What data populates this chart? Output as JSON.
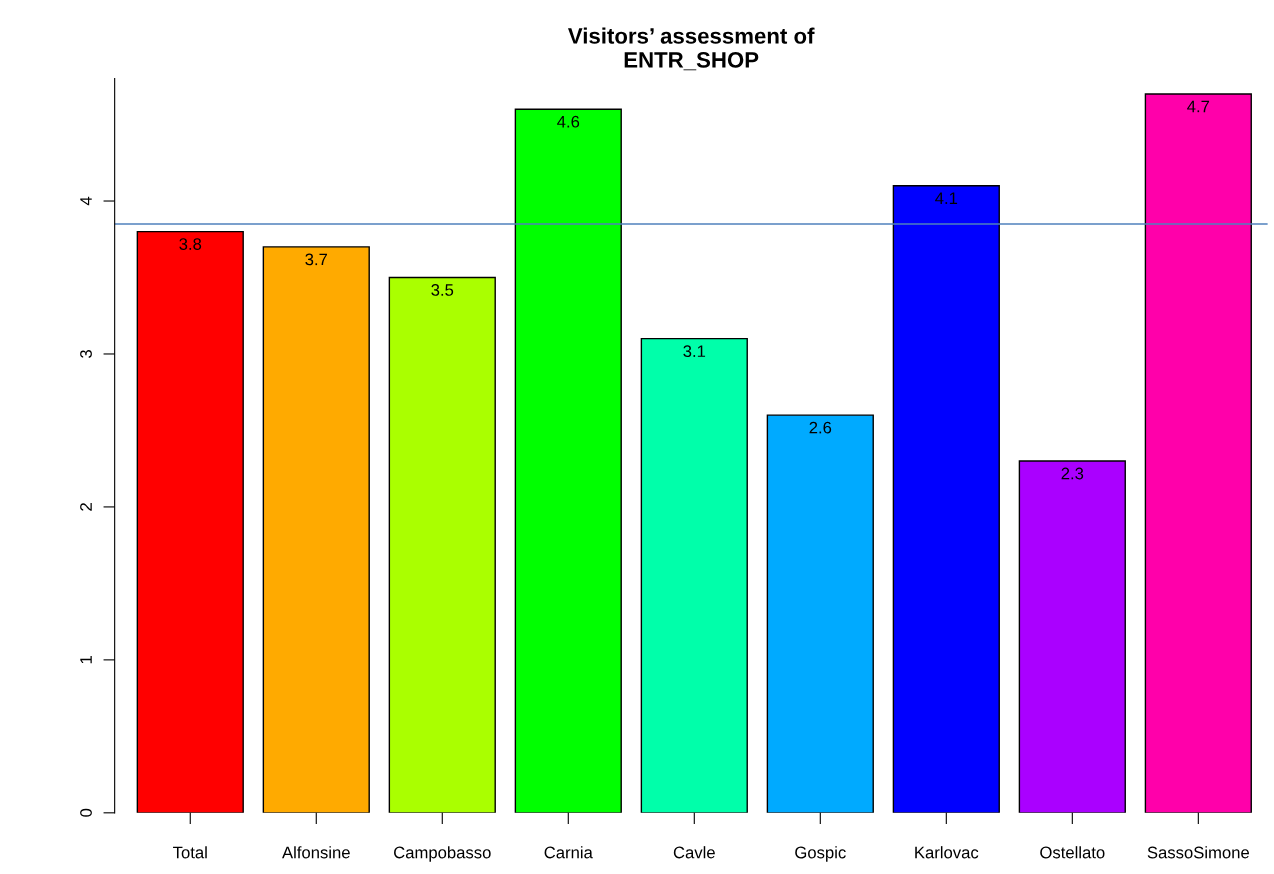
{
  "chart_data": {
    "type": "bar",
    "title": "Visitors’ assessment of\nENTR_SHOP",
    "categories": [
      "Total",
      "Alfonsine",
      "Campobasso",
      "Carnia",
      "Cavle",
      "Gospic",
      "Karlovac",
      "Ostellato",
      "SassoSimone"
    ],
    "values": [
      3.8,
      3.7,
      3.5,
      4.6,
      3.1,
      2.6,
      4.1,
      2.3,
      4.7
    ],
    "colors": [
      "#ff0000",
      "#ffaa00",
      "#aaff00",
      "#00ff00",
      "#00ffaa",
      "#00aaff",
      "#0000ff",
      "#aa00ff",
      "#ff00aa"
    ],
    "data_labels": true,
    "ylim": [
      0,
      4.8
    ],
    "yticks": [
      0,
      1,
      2,
      3,
      4
    ],
    "ref_lines": [
      {
        "axis": "y",
        "value": 3.85,
        "color": "#4f81bd"
      }
    ],
    "grid": false
  }
}
